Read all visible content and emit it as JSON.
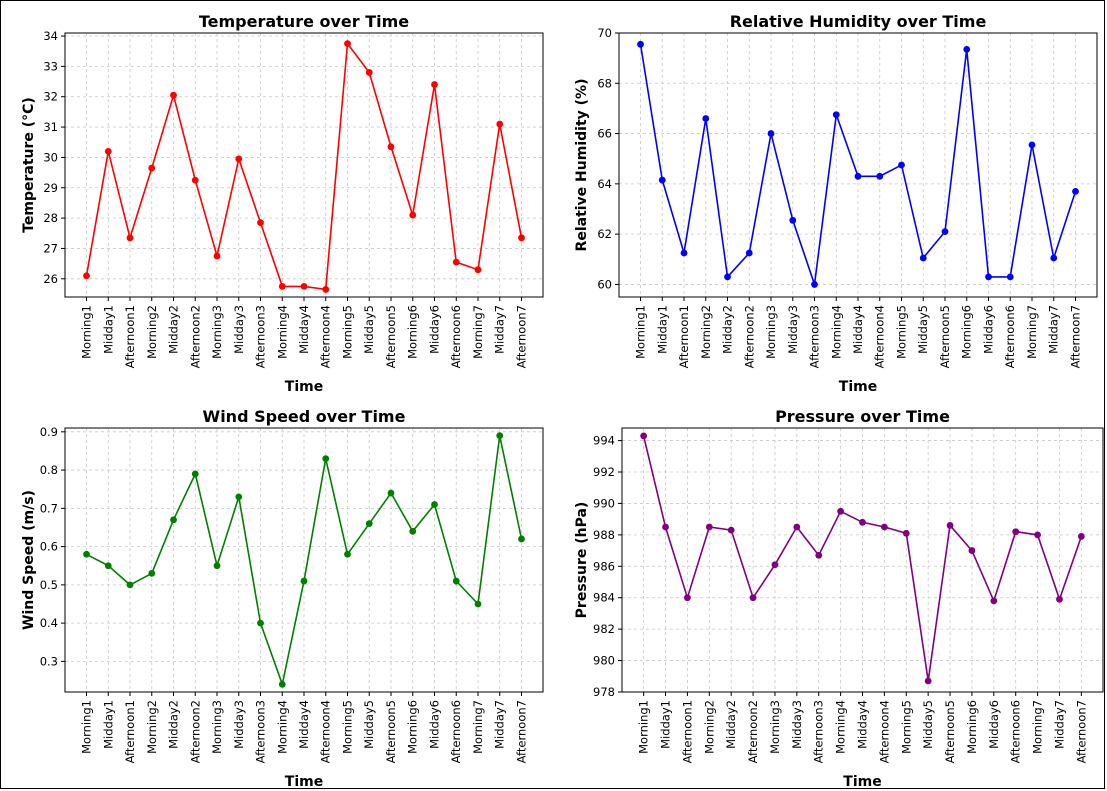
{
  "chart_data": [
    {
      "type": "line",
      "title": "Temperature over Time",
      "xlabel": "Time",
      "ylabel": "Temperature (°C)",
      "color": "#ff0000",
      "ylim": [
        25.4,
        34.1
      ],
      "yticks": [
        26,
        27,
        28,
        29,
        30,
        31,
        32,
        33,
        34
      ],
      "categories": [
        "Morning1",
        "Midday1",
        "Afternoon1",
        "Morning2",
        "Midday2",
        "Afternoon2",
        "Morning3",
        "Midday3",
        "Afternoon3",
        "Morning4",
        "Midday4",
        "Afternoon4",
        "Morning5",
        "Midday5",
        "Afternoon5",
        "Morning6",
        "Midday6",
        "Afternoon6",
        "Morning7",
        "Midday7",
        "Afternoon7"
      ],
      "values": [
        26.1,
        30.2,
        27.35,
        29.65,
        32.05,
        29.25,
        26.75,
        29.95,
        27.85,
        25.75,
        25.75,
        25.65,
        33.75,
        32.8,
        30.35,
        28.1,
        32.4,
        26.55,
        26.3,
        31.1,
        27.35
      ],
      "grid": true
    },
    {
      "type": "line",
      "title": "Relative Humidity over Time",
      "xlabel": "Time",
      "ylabel": "Relative Humidity (%)",
      "color": "#0000ff",
      "ylim": [
        59.5,
        70.0
      ],
      "yticks": [
        60,
        62,
        64,
        66,
        68,
        70
      ],
      "categories": [
        "Morning1",
        "Midday1",
        "Afternoon1",
        "Morning2",
        "Midday2",
        "Afternoon2",
        "Morning3",
        "Midday3",
        "Afternoon3",
        "Morning4",
        "Midday4",
        "Afternoon4",
        "Morning5",
        "Midday5",
        "Afternoon5",
        "Morning6",
        "Midday6",
        "Afternoon6",
        "Morning7",
        "Midday7",
        "Afternoon7"
      ],
      "values": [
        69.55,
        64.15,
        61.25,
        66.6,
        60.3,
        61.25,
        66.0,
        62.55,
        60.0,
        66.75,
        64.3,
        64.3,
        64.75,
        61.05,
        62.1,
        69.35,
        60.3,
        60.3,
        65.55,
        61.05,
        63.7
      ],
      "grid": true
    },
    {
      "type": "line",
      "title": "Wind Speed over Time",
      "xlabel": "Time",
      "ylabel": "Wind Speed (m/s)",
      "color": "#008000",
      "ylim": [
        0.22,
        0.91
      ],
      "yticks": [
        0.3,
        0.4,
        0.5,
        0.6,
        0.7,
        0.8,
        0.9
      ],
      "categories": [
        "Morning1",
        "Midday1",
        "Afternoon1",
        "Morning2",
        "Midday2",
        "Afternoon2",
        "Morning3",
        "Midday3",
        "Afternoon3",
        "Morning4",
        "Midday4",
        "Afternoon4",
        "Morning5",
        "Midday5",
        "Afternoon5",
        "Morning6",
        "Midday6",
        "Afternoon6",
        "Morning7",
        "Midday7",
        "Afternoon7"
      ],
      "values": [
        0.58,
        0.55,
        0.5,
        0.53,
        0.67,
        0.79,
        0.55,
        0.73,
        0.4,
        0.24,
        0.51,
        0.83,
        0.58,
        0.66,
        0.74,
        0.64,
        0.71,
        0.51,
        0.45,
        0.89,
        0.62
      ],
      "grid": true
    },
    {
      "type": "line",
      "title": "Pressure over Time",
      "xlabel": "Time",
      "ylabel": "Pressure (hPa)",
      "color": "#800080",
      "ylim": [
        978.0,
        994.8
      ],
      "yticks": [
        978,
        980,
        982,
        984,
        986,
        988,
        990,
        992,
        994
      ],
      "categories": [
        "Morning1",
        "Midday1",
        "Afternoon1",
        "Morning2",
        "Midday2",
        "Afternoon2",
        "Morning3",
        "Midday3",
        "Afternoon3",
        "Morning4",
        "Midday4",
        "Afternoon4",
        "Morning5",
        "Midday5",
        "Afternoon5",
        "Morning6",
        "Midday6",
        "Afternoon6",
        "Morning7",
        "Midday7",
        "Afternoon7"
      ],
      "values": [
        994.3,
        988.5,
        984.0,
        988.5,
        988.3,
        984.0,
        986.1,
        988.5,
        986.7,
        989.5,
        988.8,
        988.5,
        988.1,
        978.7,
        988.6,
        987.0,
        983.8,
        988.2,
        988.0,
        983.9,
        987.9
      ],
      "grid": true
    }
  ]
}
